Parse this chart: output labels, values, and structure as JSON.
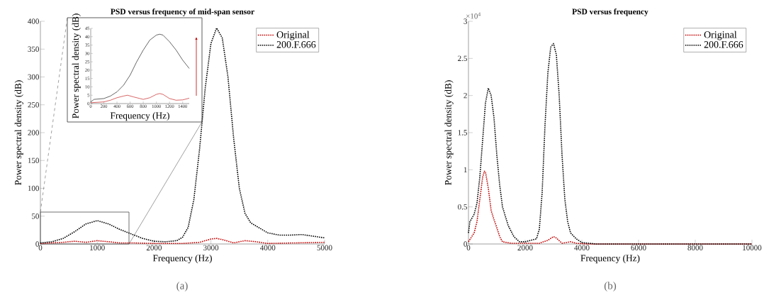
{
  "chart_data": [
    {
      "type": "line",
      "title": "PSD versus frequency of mid-span sensor",
      "xlabel": "Frequency (Hz)",
      "ylabel": "Power spectral density (dB)",
      "xlim": [
        0,
        5000
      ],
      "ylim": [
        0,
        400
      ],
      "xticks": [
        0,
        1000,
        2000,
        3000,
        4000,
        5000
      ],
      "yticks": [
        0,
        50,
        100,
        150,
        200,
        250,
        300,
        350,
        400
      ],
      "legend": "top right",
      "line_style": "dotted",
      "annotations": [
        "(a)"
      ],
      "series": [
        {
          "name": "Original",
          "color": "#c00000",
          "x": [
            0,
            200,
            400,
            600,
            800,
            1000,
            1200,
            1400,
            1600,
            2000,
            2500,
            2800,
            3000,
            3100,
            3200,
            3400,
            3600,
            3800,
            4000,
            4500,
            5000
          ],
          "values": [
            1,
            2,
            3,
            5,
            3,
            6,
            4,
            2,
            2,
            1,
            1,
            3,
            9,
            10,
            8,
            2,
            6,
            4,
            1,
            2,
            3
          ]
        },
        {
          "name": "200.F.666",
          "color": "#000000",
          "x": [
            0,
            200,
            400,
            600,
            800,
            1000,
            1200,
            1400,
            1600,
            1800,
            2000,
            2200,
            2400,
            2500,
            2600,
            2700,
            2800,
            2900,
            3000,
            3100,
            3200,
            3300,
            3400,
            3500,
            3600,
            3700,
            3800,
            3900,
            4000,
            4200,
            4400,
            4600,
            4800,
            5000
          ],
          "values": [
            2,
            4,
            10,
            22,
            36,
            42,
            36,
            26,
            18,
            10,
            5,
            4,
            6,
            12,
            30,
            80,
            170,
            280,
            360,
            388,
            370,
            300,
            190,
            100,
            55,
            38,
            32,
            26,
            20,
            16,
            16,
            17,
            14,
            11
          ]
        }
      ]
    },
    {
      "type": "line",
      "xlabel": "Frequency (Hz)",
      "ylabel": "Power spectral density (dB)",
      "xlim": [
        0,
        1500
      ],
      "ylim": [
        0,
        45
      ],
      "xticks": [
        0,
        200,
        400,
        600,
        800,
        1000,
        1200,
        1400
      ],
      "yticks": [
        0,
        5,
        10,
        15,
        20,
        25,
        30,
        35,
        40,
        45
      ],
      "line_style": "solid",
      "series": [
        {
          "color": "#000000",
          "x": [
            0,
            50,
            200,
            300,
            400,
            500,
            600,
            700,
            800,
            900,
            1000,
            1050,
            1100,
            1200,
            1300,
            1400,
            1500
          ],
          "values": [
            1,
            2.5,
            3,
            4.5,
            7,
            11,
            17,
            25,
            32,
            38,
            41,
            41.5,
            41,
            37,
            32,
            26,
            21
          ]
        },
        {
          "color": "#c00000",
          "x": [
            0,
            200,
            300,
            400,
            500,
            560,
            650,
            750,
            800,
            900,
            1000,
            1050,
            1100,
            1200,
            1300,
            1400,
            1500
          ],
          "values": [
            0.5,
            1,
            2,
            3.5,
            4.5,
            5,
            4,
            3,
            2.5,
            3.5,
            5.5,
            6,
            5.5,
            3,
            2,
            2.2,
            3.2
          ]
        }
      ]
    },
    {
      "type": "line",
      "title": "PSD versus frequency",
      "xlabel": "Frequency (Hz)",
      "ylabel": "Power spectral density (dB)",
      "xlim": [
        0,
        10000
      ],
      "ylim": [
        0,
        3
      ],
      "xticks": [
        0,
        2000,
        4000,
        6000,
        8000,
        10000
      ],
      "yticks": [
        0,
        0.5,
        1,
        1.5,
        2,
        2.5,
        3
      ],
      "legend": "top right",
      "line_style": "dotted",
      "annotations": [
        "×10$^{4}$",
        "(b)"
      ],
      "series": [
        {
          "name": "Original",
          "color": "#c00000",
          "x": [
            0,
            200,
            300,
            400,
            500,
            560,
            600,
            700,
            800,
            900,
            1000,
            1100,
            1200,
            1500,
            2000,
            2500,
            2800,
            3000,
            3100,
            3300,
            3600,
            3800,
            4200,
            10000
          ],
          "values": [
            0.03,
            0.15,
            0.3,
            0.6,
            0.9,
            0.98,
            0.97,
            0.75,
            0.45,
            0.33,
            0.22,
            0.1,
            0.03,
            0.01,
            0.01,
            0.01,
            0.05,
            0.1,
            0.08,
            0.01,
            0.03,
            0.01,
            0,
            0
          ]
        },
        {
          "name": "200.F.666",
          "color": "#000000",
          "x": [
            0,
            50,
            200,
            300,
            400,
            500,
            600,
            700,
            800,
            900,
            1000,
            1100,
            1200,
            1400,
            1600,
            1800,
            2000,
            2200,
            2400,
            2500,
            2600,
            2700,
            2800,
            2900,
            3000,
            3100,
            3200,
            3300,
            3400,
            3500,
            3600,
            3800,
            4000,
            4500,
            10000
          ],
          "values": [
            0.15,
            0.3,
            0.4,
            0.55,
            0.9,
            1.4,
            1.9,
            2.1,
            2.0,
            1.7,
            1.2,
            0.8,
            0.5,
            0.25,
            0.1,
            0.03,
            0.03,
            0.05,
            0.07,
            0.2,
            0.7,
            1.6,
            2.3,
            2.65,
            2.7,
            2.55,
            2.0,
            1.2,
            0.6,
            0.3,
            0.15,
            0.07,
            0.02,
            0,
            0
          ]
        }
      ]
    }
  ]
}
